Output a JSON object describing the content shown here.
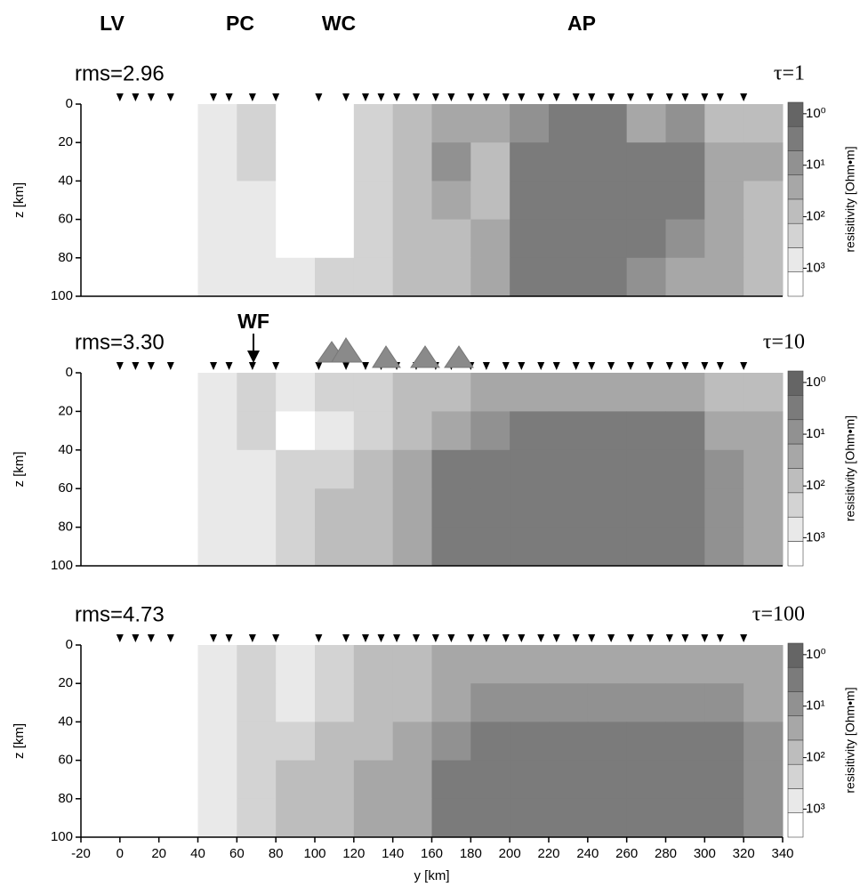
{
  "chart_data": [
    {
      "type": "heatmap",
      "title": "rms=2.96",
      "subtitle": "τ=1",
      "annotations": [
        "LV",
        "PC",
        "WC",
        "AP"
      ],
      "x_edges": [
        -20,
        0,
        20,
        40,
        60,
        80,
        100,
        120,
        140,
        160,
        180,
        200,
        220,
        240,
        260,
        280,
        300,
        320,
        340
      ],
      "z_edges": [
        0,
        20,
        40,
        60,
        80,
        100
      ],
      "values": [
        [
          3000,
          3000,
          3000,
          500,
          300,
          3000,
          3000,
          200,
          100,
          30,
          20,
          10,
          3,
          3,
          30,
          10,
          100,
          100
        ],
        [
          3000,
          3000,
          3000,
          500,
          300,
          3000,
          3000,
          300,
          100,
          10,
          50,
          3,
          3,
          3,
          3,
          3,
          20,
          30
        ],
        [
          3000,
          3000,
          3000,
          500,
          500,
          3000,
          3000,
          300,
          100,
          20,
          50,
          3,
          3,
          3,
          3,
          3,
          20,
          100
        ],
        [
          3000,
          3000,
          3000,
          500,
          500,
          3000,
          3000,
          300,
          100,
          50,
          30,
          3,
          3,
          3,
          3,
          10,
          30,
          100
        ],
        [
          3000,
          3000,
          3000,
          500,
          500,
          500,
          300,
          200,
          100,
          50,
          30,
          3,
          3,
          3,
          10,
          20,
          30,
          100
        ]
      ],
      "stations": [
        0,
        8,
        16,
        26,
        48,
        56,
        68,
        80,
        102,
        116,
        126,
        134,
        142,
        152,
        162,
        170,
        180,
        188,
        198,
        206,
        216,
        224,
        234,
        242,
        252,
        262,
        272,
        282,
        290,
        300,
        308,
        320
      ],
      "ylabel": "z [km]",
      "ylim": [
        0,
        100
      ],
      "yticks": [
        0,
        20,
        40,
        60,
        80,
        100
      ],
      "y_reversed": true,
      "xlim": [
        -20,
        340
      ],
      "colorbar": {
        "label": "resisitivity [Ohm•m]",
        "log": true,
        "clim": [
          0.6,
          3500
        ],
        "ticks": [
          {
            "value": 1,
            "label": "10⁰"
          },
          {
            "value": 10,
            "label": "10¹"
          },
          {
            "value": 100,
            "label": "10²"
          },
          {
            "value": 1000,
            "label": "10³"
          }
        ]
      }
    },
    {
      "type": "heatmap",
      "title": "rms=3.30",
      "subtitle": "τ=10",
      "annotations": [
        "WF"
      ],
      "x_edges": [
        -20,
        0,
        20,
        40,
        60,
        80,
        100,
        120,
        140,
        160,
        180,
        200,
        220,
        240,
        260,
        280,
        300,
        320,
        340
      ],
      "z_edges": [
        0,
        20,
        40,
        60,
        80,
        100
      ],
      "values": [
        [
          3000,
          3000,
          3000,
          500,
          300,
          500,
          300,
          200,
          100,
          50,
          30,
          30,
          30,
          30,
          30,
          30,
          50,
          100
        ],
        [
          3000,
          3000,
          3000,
          500,
          300,
          3000,
          1000,
          200,
          50,
          20,
          10,
          3,
          3,
          3,
          3,
          3,
          20,
          30
        ],
        [
          3000,
          3000,
          3000,
          500,
          500,
          300,
          200,
          100,
          30,
          3,
          3,
          3,
          3,
          3,
          3,
          3,
          10,
          30
        ],
        [
          3000,
          3000,
          3000,
          500,
          500,
          200,
          100,
          50,
          20,
          3,
          3,
          3,
          3,
          3,
          3,
          3,
          10,
          30
        ],
        [
          3000,
          3000,
          3000,
          500,
          500,
          200,
          100,
          50,
          20,
          3,
          3,
          3,
          3,
          3,
          3,
          3,
          10,
          30
        ]
      ],
      "stations": [
        0,
        8,
        16,
        26,
        48,
        56,
        68,
        80,
        102,
        116,
        126,
        134,
        142,
        152,
        162,
        170,
        180,
        188,
        198,
        206,
        216,
        224,
        234,
        242,
        252,
        262,
        272,
        282,
        290,
        300,
        308,
        320
      ],
      "ylabel": "z [km]",
      "ylim": [
        0,
        100
      ],
      "yticks": [
        0,
        20,
        40,
        60,
        80,
        100
      ],
      "y_reversed": true,
      "xlim": [
        -20,
        340
      ],
      "colorbar": {
        "label": "resisitivity [Ohm•m]",
        "log": true,
        "clim": [
          0.6,
          3500
        ],
        "ticks": [
          {
            "value": 1,
            "label": "10⁰"
          },
          {
            "value": 10,
            "label": "10¹"
          },
          {
            "value": 100,
            "label": "10²"
          },
          {
            "value": 1000,
            "label": "10³"
          }
        ]
      }
    },
    {
      "type": "heatmap",
      "title": "rms=4.73",
      "subtitle": "τ=100",
      "x_edges": [
        -20,
        0,
        20,
        40,
        60,
        80,
        100,
        120,
        140,
        160,
        180,
        200,
        220,
        240,
        260,
        280,
        300,
        320,
        340
      ],
      "z_edges": [
        0,
        20,
        40,
        60,
        80,
        100
      ],
      "values": [
        [
          3000,
          3000,
          3000,
          1000,
          300,
          500,
          200,
          100,
          50,
          30,
          30,
          30,
          30,
          30,
          30,
          30,
          30,
          30
        ],
        [
          3000,
          3000,
          3000,
          1000,
          200,
          1000,
          300,
          100,
          50,
          30,
          10,
          10,
          10,
          10,
          10,
          10,
          10,
          30
        ],
        [
          3000,
          3000,
          3000,
          500,
          200,
          200,
          100,
          50,
          30,
          10,
          3,
          3,
          3,
          3,
          3,
          3,
          3,
          10
        ],
        [
          3000,
          3000,
          3000,
          500,
          200,
          100,
          50,
          30,
          20,
          3,
          3,
          3,
          3,
          3,
          3,
          3,
          3,
          10
        ],
        [
          3000,
          3000,
          3000,
          500,
          200,
          100,
          50,
          30,
          20,
          3,
          3,
          3,
          3,
          3,
          3,
          3,
          3,
          10
        ]
      ],
      "stations": [
        0,
        8,
        16,
        26,
        48,
        56,
        68,
        80,
        102,
        116,
        126,
        134,
        142,
        152,
        162,
        170,
        180,
        188,
        198,
        206,
        216,
        224,
        234,
        242,
        252,
        262,
        272,
        282,
        290,
        300,
        308,
        320
      ],
      "ylabel": "z [km]",
      "ylim": [
        0,
        100
      ],
      "yticks": [
        0,
        20,
        40,
        60,
        80,
        100
      ],
      "y_reversed": true,
      "xlim": [
        -20,
        340
      ],
      "xlabel": "y [km]",
      "xticks": [
        -20,
        0,
        20,
        40,
        60,
        80,
        100,
        120,
        140,
        160,
        180,
        200,
        220,
        240,
        260,
        280,
        300,
        320,
        340
      ],
      "colorbar": {
        "label": "resisitivity [Ohm•m]",
        "log": true,
        "clim": [
          0.6,
          3500
        ],
        "ticks": [
          {
            "value": 1,
            "label": "10⁰"
          },
          {
            "value": 10,
            "label": "10¹"
          },
          {
            "value": 100,
            "label": "10²"
          },
          {
            "value": 1000,
            "label": "10³"
          }
        ]
      }
    }
  ]
}
